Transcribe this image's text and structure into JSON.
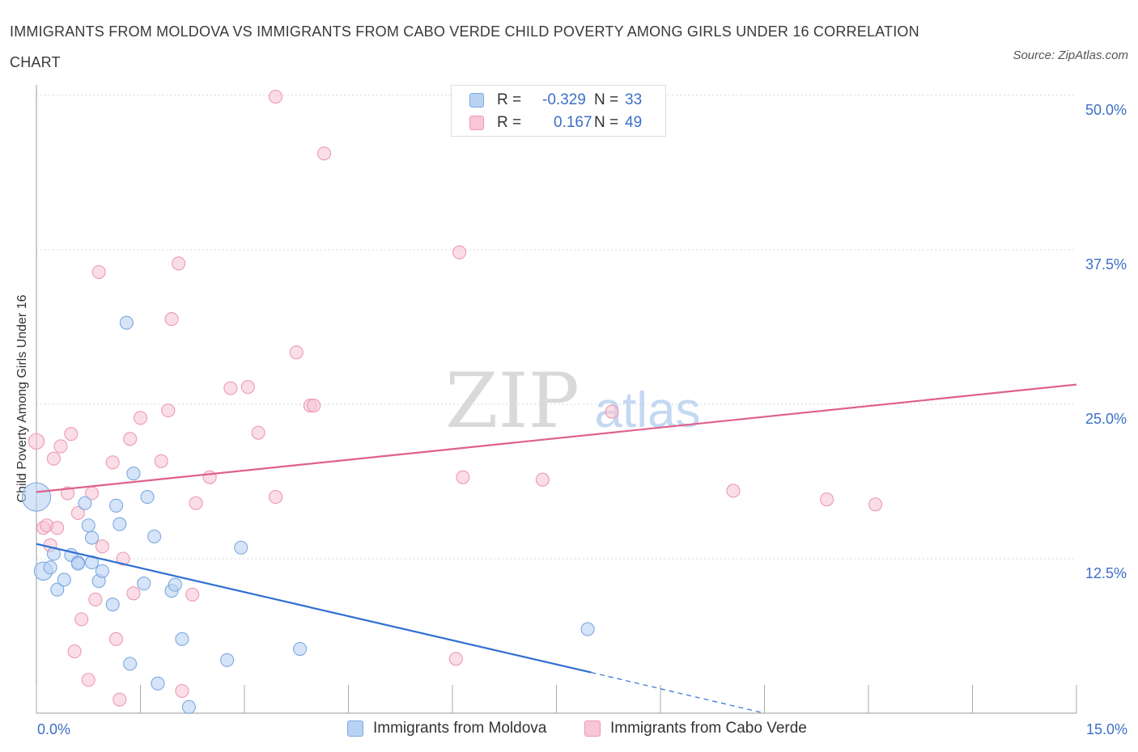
{
  "header": {
    "title": "IMMIGRANTS FROM MOLDOVA VS IMMIGRANTS FROM CABO VERDE CHILD POVERTY AMONG GIRLS UNDER 16 CORRELATION CHART",
    "source": "Source: ZipAtlas.com"
  },
  "watermark": {
    "zip": "ZIP",
    "atlas": "atlas"
  },
  "legend": {
    "r_label": "R =",
    "n_label": "N =",
    "moldova": {
      "r": "-0.329",
      "n": "33"
    },
    "caboverde": {
      "r": "0.167",
      "n": "49"
    }
  },
  "colors": {
    "moldova_fill": "#b9d2f3",
    "moldova_stroke": "#7da8e0",
    "moldova_line": "#2f6fd1",
    "caboverde_fill": "#f8c6d5",
    "caboverde_stroke": "#ec9ab4",
    "caboverde_line": "#e0608b",
    "grid": "#d8d8d8",
    "tick_label": "#3b6fc7"
  },
  "chart_data": {
    "type": "scatter",
    "title": "IMMIGRANTS FROM MOLDOVA VS IMMIGRANTS FROM CABO VERDE CHILD POVERTY AMONG GIRLS UNDER 16 CORRELATION CHART",
    "xlabel": "",
    "ylabel": "Child Poverty Among Girls Under 16",
    "xlim": [
      0,
      15
    ],
    "ylim": [
      0,
      50
    ],
    "x_tick_labels": [
      "0.0%",
      "15.0%"
    ],
    "y_ticks": [
      12.5,
      25.0,
      37.5,
      50.0
    ],
    "y_tick_labels": [
      "12.5%",
      "25.0%",
      "37.5%",
      "50.0%"
    ],
    "legend_position": "top-center",
    "series": [
      {
        "name": "Immigrants from Moldova",
        "r": -0.329,
        "n": 33,
        "points": [
          [
            0.0,
            17.5,
            2.2
          ],
          [
            0.1,
            11.5,
            1.4
          ],
          [
            0.2,
            11.8,
            1.0
          ],
          [
            0.25,
            12.9,
            1.0
          ],
          [
            0.3,
            10.0,
            1.0
          ],
          [
            0.4,
            10.8,
            1.0
          ],
          [
            0.5,
            12.8,
            1.0
          ],
          [
            0.6,
            12.2,
            1.0
          ],
          [
            0.6,
            12.1,
            1.0
          ],
          [
            0.7,
            17.0,
            1.0
          ],
          [
            0.75,
            15.2,
            1.0
          ],
          [
            0.8,
            12.2,
            1.0
          ],
          [
            0.8,
            14.2,
            1.0
          ],
          [
            0.9,
            10.7,
            1.0
          ],
          [
            0.95,
            11.5,
            1.0
          ],
          [
            1.1,
            8.8,
            1.0
          ],
          [
            1.15,
            16.8,
            1.0
          ],
          [
            1.2,
            15.3,
            1.0
          ],
          [
            1.3,
            31.6,
            1.0
          ],
          [
            1.35,
            4.0,
            1.0
          ],
          [
            1.4,
            19.4,
            1.0
          ],
          [
            1.55,
            10.5,
            1.0
          ],
          [
            1.6,
            17.5,
            1.0
          ],
          [
            1.7,
            14.3,
            1.0
          ],
          [
            1.75,
            2.4,
            1.0
          ],
          [
            1.95,
            9.9,
            1.0
          ],
          [
            2.0,
            10.4,
            1.0
          ],
          [
            2.1,
            6.0,
            1.0
          ],
          [
            2.2,
            0.5,
            1.0
          ],
          [
            2.75,
            4.3,
            1.0
          ],
          [
            2.95,
            13.4,
            1.0
          ],
          [
            3.8,
            5.2,
            1.0
          ],
          [
            7.95,
            6.8,
            1.0
          ]
        ],
        "trend": {
          "x_solid": [
            0.0,
            8.0
          ],
          "y_solid": [
            13.7,
            3.3
          ],
          "x_dashed": [
            8.0,
            10.5
          ],
          "y_dashed": [
            3.3,
            0.0
          ]
        }
      },
      {
        "name": "Immigrants from Cabo Verde",
        "r": 0.167,
        "n": 49,
        "points": [
          [
            0.0,
            22.0,
            1.2
          ],
          [
            0.1,
            15.0,
            1.0
          ],
          [
            0.15,
            15.2,
            1.0
          ],
          [
            0.2,
            13.6,
            1.0
          ],
          [
            0.25,
            20.6,
            1.0
          ],
          [
            0.3,
            15.0,
            1.0
          ],
          [
            0.35,
            21.6,
            1.0
          ],
          [
            0.45,
            17.8,
            1.0
          ],
          [
            0.5,
            22.6,
            1.0
          ],
          [
            0.55,
            5.0,
            1.0
          ],
          [
            0.6,
            16.2,
            1.0
          ],
          [
            0.65,
            7.6,
            1.0
          ],
          [
            0.75,
            2.7,
            1.0
          ],
          [
            0.8,
            17.8,
            1.0
          ],
          [
            0.85,
            9.2,
            1.0
          ],
          [
            0.9,
            35.7,
            1.0
          ],
          [
            0.95,
            13.5,
            1.0
          ],
          [
            1.1,
            20.3,
            1.0
          ],
          [
            1.15,
            6.0,
            1.0
          ],
          [
            1.2,
            1.1,
            1.0
          ],
          [
            1.25,
            12.5,
            1.0
          ],
          [
            1.35,
            22.2,
            1.0
          ],
          [
            1.4,
            9.7,
            1.0
          ],
          [
            1.5,
            23.9,
            1.0
          ],
          [
            1.8,
            20.4,
            1.0
          ],
          [
            1.9,
            24.5,
            1.0
          ],
          [
            1.95,
            31.9,
            1.0
          ],
          [
            2.05,
            36.4,
            1.0
          ],
          [
            2.1,
            1.8,
            1.0
          ],
          [
            2.25,
            9.6,
            1.0
          ],
          [
            2.3,
            17.0,
            1.0
          ],
          [
            2.5,
            19.1,
            1.0
          ],
          [
            2.8,
            26.3,
            1.0
          ],
          [
            3.05,
            26.4,
            1.0
          ],
          [
            3.2,
            22.7,
            1.0
          ],
          [
            3.45,
            17.5,
            1.0
          ],
          [
            3.45,
            49.9,
            1.0
          ],
          [
            3.75,
            29.2,
            1.0
          ],
          [
            3.95,
            24.9,
            1.0
          ],
          [
            4.0,
            24.9,
            1.0
          ],
          [
            4.15,
            45.3,
            1.0
          ],
          [
            6.05,
            4.4,
            1.0
          ],
          [
            6.1,
            37.3,
            1.0
          ],
          [
            6.15,
            19.1,
            1.0
          ],
          [
            7.3,
            18.9,
            1.0
          ],
          [
            8.3,
            24.4,
            1.0
          ],
          [
            10.05,
            18.0,
            1.0
          ],
          [
            11.4,
            17.3,
            1.0
          ],
          [
            12.1,
            16.9,
            1.0
          ]
        ],
        "trend": {
          "x": [
            0.0,
            15.0
          ],
          "y": [
            17.9,
            26.6
          ]
        }
      }
    ]
  },
  "bottom_legend": {
    "moldova": "Immigrants from Moldova",
    "caboverde": "Immigrants from Cabo Verde"
  }
}
